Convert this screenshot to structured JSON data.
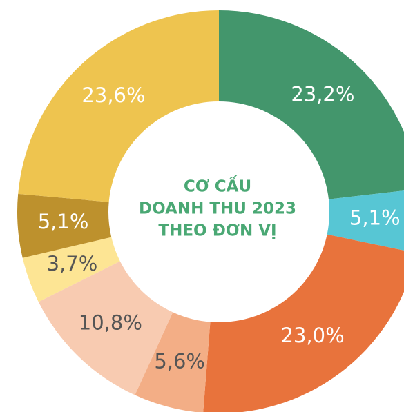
{
  "chart_data": {
    "type": "donut",
    "title": [
      "CƠ CẤU",
      "DOANH THU 2023",
      "THEO ĐƠN VỊ"
    ],
    "values": [
      23.2,
      5.1,
      23.0,
      5.6,
      10.8,
      3.7,
      5.1,
      23.6
    ],
    "value_labels": [
      "23,2%",
      "5,1%",
      "23,0%",
      "5,6%",
      "10,8%",
      "3,7%",
      "5,1%",
      "23,6%"
    ],
    "colors": [
      "#43966c",
      "#57c6d4",
      "#e8733c",
      "#f3ae86",
      "#f8cbb1",
      "#fde594",
      "#bd912d",
      "#eec44f"
    ],
    "label_colors": [
      "#ffffff",
      "#ffffff",
      "#ffffff",
      "#555555",
      "#555555",
      "#555555",
      "#ffffff",
      "#ffffff"
    ],
    "title_color": "#4aa874"
  }
}
